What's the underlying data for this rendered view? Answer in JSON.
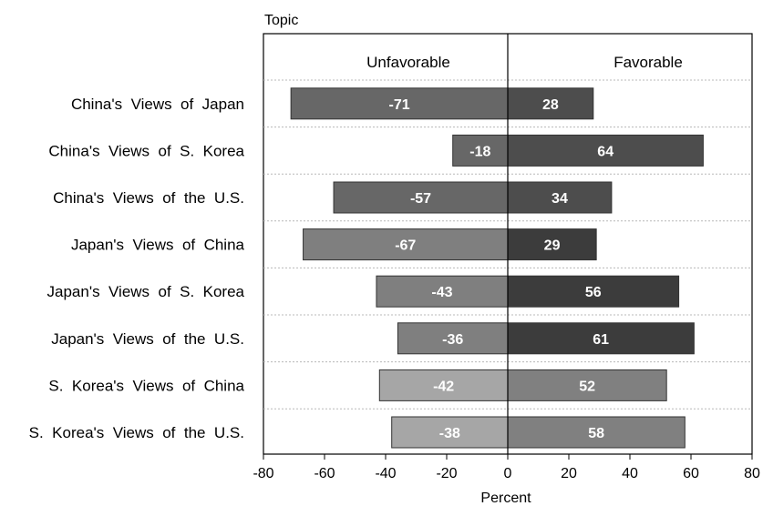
{
  "chart_data": {
    "type": "bar",
    "orientation": "horizontal",
    "stacked": "diverging",
    "y_axis_title": "Topic",
    "xlabel": "Percent",
    "xlim": [
      -80,
      80
    ],
    "x_ticks": [
      -80,
      -60,
      -40,
      -20,
      0,
      20,
      40,
      60,
      80
    ],
    "x_tick_labels": [
      "-80",
      "-60",
      "-40",
      "-20",
      "0",
      "20",
      "40",
      "60",
      "80"
    ],
    "column_headers": {
      "negative": "Unfavorable",
      "positive": "Favorable"
    },
    "categories": [
      "China's  Views  of  Japan",
      "China's  Views  of  S.  Korea",
      "China's  Views  of  the  U.S.",
      "Japan's  Views  of  China",
      "Japan's  Views  of  S.  Korea",
      "Japan's  Views  of  the  U.S.",
      "S.  Korea's  Views  of  China",
      "S.  Korea's  Views  of  the  U.S."
    ],
    "series": [
      {
        "values": [
          -71,
          -18,
          -57,
          -67,
          -43,
          -36,
          -42,
          -38
        ],
        "labels": [
          "-71",
          "-18",
          "-57",
          "-67",
          "-43",
          "-36",
          "-42",
          "-38"
        ]
      },
      {
        "values": [
          28,
          64,
          34,
          29,
          56,
          61,
          52,
          58
        ],
        "labels": [
          "28",
          "64",
          "34",
          "29",
          "56",
          "61",
          "52",
          "58"
        ]
      }
    ],
    "bar_colors": {
      "unfavorable": [
        "#676767",
        "#676767",
        "#676767",
        "#7f7f7f",
        "#7f7f7f",
        "#7f7f7f",
        "#a6a6a6",
        "#a6a6a6"
      ],
      "favorable": [
        "#4d4d4d",
        "#4d4d4d",
        "#4d4d4d",
        "#3c3c3c",
        "#3c3c3c",
        "#3c3c3c",
        "#808080",
        "#808080"
      ]
    },
    "grid": "horizontal separators between categories",
    "legend": "none"
  }
}
